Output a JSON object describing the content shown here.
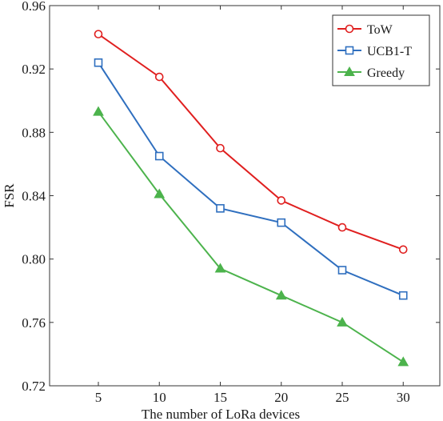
{
  "chart_data": {
    "type": "line",
    "title": "",
    "xlabel": "The number of LoRa devices",
    "ylabel": "FSR",
    "x": [
      5,
      10,
      15,
      20,
      25,
      30
    ],
    "xticks": [
      "5",
      "10",
      "15",
      "20",
      "25",
      "30"
    ],
    "xlim": [
      1,
      33
    ],
    "ylim": [
      0.72,
      0.96
    ],
    "yticks": [
      "0.72",
      "0.76",
      "0.80",
      "0.84",
      "0.88",
      "0.92",
      "0.96"
    ],
    "grid": false,
    "legend_position": "top-right",
    "series": [
      {
        "name": "ToW",
        "color": "#e01f1f",
        "marker": "circle",
        "values": [
          0.942,
          0.915,
          0.87,
          0.837,
          0.82,
          0.806
        ]
      },
      {
        "name": "UCB1-T",
        "color": "#2f6fbf",
        "marker": "square",
        "values": [
          0.924,
          0.865,
          0.832,
          0.823,
          0.793,
          0.777
        ]
      },
      {
        "name": "Greedy",
        "color": "#4cb34c",
        "marker": "triangle",
        "values": [
          0.893,
          0.841,
          0.794,
          0.777,
          0.76,
          0.735
        ]
      }
    ]
  }
}
